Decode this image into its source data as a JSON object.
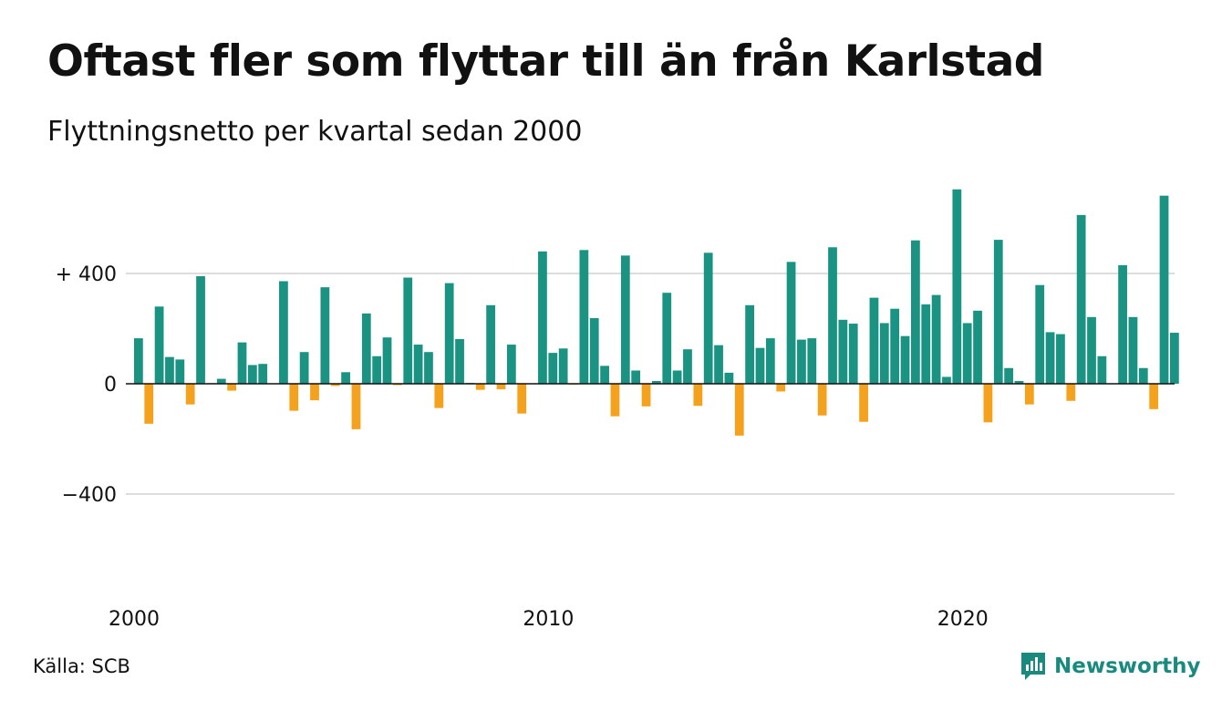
{
  "header": {
    "title": "Oftast fler som flyttar till än från Karlstad",
    "subtitle": "Flyttningsnetto per kvartal sedan 2000"
  },
  "footer": {
    "source": "Källa: SCB",
    "brand": "Newsworthy",
    "brand_icon": "newsworthy-logo-icon"
  },
  "colors": {
    "positive": "#1a9383",
    "negative": "#f4a21e",
    "gridline": "#dddddd",
    "text": "#111111",
    "brand": "#1a8a7e"
  },
  "chart_data": {
    "type": "bar",
    "title": "Oftast fler som flyttar till än från Karlstad",
    "subtitle": "Flyttningsnetto per kvartal sedan 2000",
    "x_start": "2000 Q1",
    "x_ticks": [
      "2000",
      "2010",
      "2020"
    ],
    "y_ticks": [
      {
        "value": 400,
        "label": "+ 400"
      },
      {
        "value": 0,
        "label": "0"
      },
      {
        "value": -400,
        "label": "−400"
      }
    ],
    "ylim": [
      -700,
      730
    ],
    "grid": true,
    "legend": "none",
    "categories": [
      "2000 Q1",
      "2000 Q2",
      "2000 Q3",
      "2000 Q4",
      "2001 Q1",
      "2001 Q2",
      "2001 Q3",
      "2001 Q4",
      "2002 Q1",
      "2002 Q2",
      "2002 Q3",
      "2002 Q4",
      "2003 Q1",
      "2003 Q2",
      "2003 Q3",
      "2003 Q4",
      "2004 Q1",
      "2004 Q2",
      "2004 Q3",
      "2004 Q4",
      "2005 Q1",
      "2005 Q2",
      "2005 Q3",
      "2005 Q4",
      "2006 Q1",
      "2006 Q2",
      "2006 Q3",
      "2006 Q4",
      "2007 Q1",
      "2007 Q2",
      "2007 Q3",
      "2007 Q4",
      "2008 Q1",
      "2008 Q2",
      "2008 Q3",
      "2008 Q4",
      "2009 Q1",
      "2009 Q2",
      "2009 Q3",
      "2009 Q4",
      "2010 Q1",
      "2010 Q2",
      "2010 Q3",
      "2010 Q4",
      "2011 Q1",
      "2011 Q2",
      "2011 Q3",
      "2011 Q4",
      "2012 Q1",
      "2012 Q2",
      "2012 Q3",
      "2012 Q4",
      "2013 Q1",
      "2013 Q2",
      "2013 Q3",
      "2013 Q4",
      "2014 Q1",
      "2014 Q2",
      "2014 Q3",
      "2014 Q4",
      "2015 Q1",
      "2015 Q2",
      "2015 Q3",
      "2015 Q4",
      "2016 Q1",
      "2016 Q2",
      "2016 Q3",
      "2016 Q4",
      "2017 Q1",
      "2017 Q2",
      "2017 Q3",
      "2017 Q4",
      "2018 Q1",
      "2018 Q2",
      "2018 Q3",
      "2018 Q4",
      "2019 Q1",
      "2019 Q2",
      "2019 Q3",
      "2019 Q4",
      "2020 Q1",
      "2020 Q2",
      "2020 Q3",
      "2020 Q4",
      "2021 Q1",
      "2021 Q2",
      "2021 Q3",
      "2021 Q4",
      "2022 Q1",
      "2022 Q2",
      "2022 Q3",
      "2022 Q4",
      "2023 Q1",
      "2023 Q2",
      "2023 Q3",
      "2023 Q4",
      "2024 Q1",
      "2024 Q2",
      "2024 Q3",
      "2024 Q4",
      "2025 Q1"
    ],
    "values": [
      165,
      -145,
      280,
      97,
      88,
      -75,
      390,
      2,
      18,
      -25,
      150,
      68,
      72,
      0,
      372,
      -98,
      115,
      -60,
      350,
      -8,
      42,
      -165,
      255,
      100,
      168,
      -5,
      385,
      142,
      115,
      -88,
      365,
      162,
      3,
      -22,
      285,
      -20,
      142,
      -108,
      0,
      480,
      112,
      128,
      -3,
      485,
      238,
      65,
      -118,
      465,
      48,
      -82,
      10,
      330,
      48,
      125,
      -80,
      475,
      140,
      40,
      -188,
      285,
      130,
      165,
      -28,
      442,
      160,
      165,
      -115,
      495,
      232,
      218,
      -138,
      312,
      220,
      272,
      173,
      520,
      288,
      322,
      25,
      705,
      220,
      265,
      -140,
      522,
      57,
      10,
      -75,
      358,
      187,
      180,
      -62,
      612,
      242,
      100,
      0,
      430,
      242,
      57,
      -92,
      682,
      185
    ]
  }
}
